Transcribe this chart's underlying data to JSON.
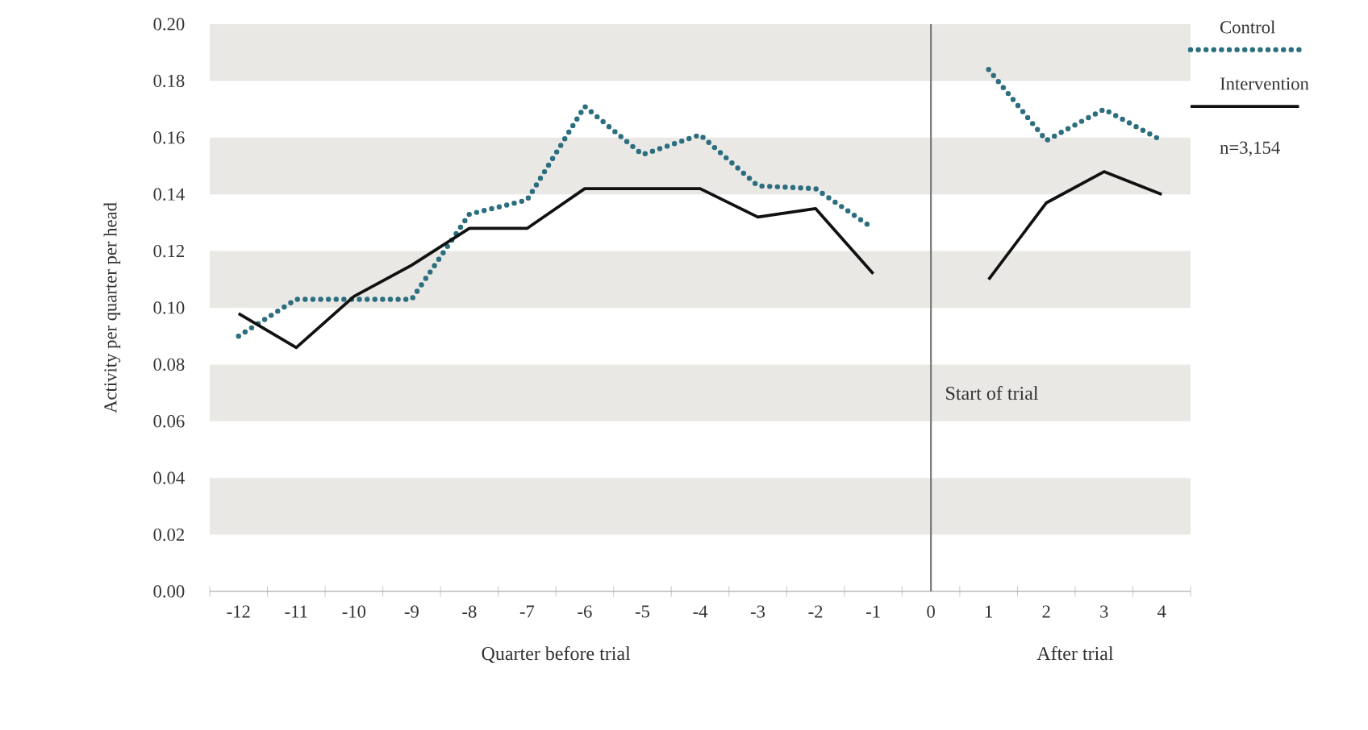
{
  "chart_data": {
    "type": "line",
    "categories": [
      "-12",
      "-11",
      "-10",
      "-9",
      "-8",
      "-7",
      "-6",
      "-5",
      "-4",
      "-3",
      "-2",
      "-1",
      "0",
      "1",
      "2",
      "3",
      "4"
    ],
    "series": [
      {
        "name": "Control",
        "color": "#2b6e7e",
        "line_style": "dotted",
        "values": [
          0.09,
          0.103,
          0.103,
          0.103,
          0.133,
          0.138,
          0.171,
          0.154,
          0.161,
          0.143,
          0.142,
          0.128,
          null,
          0.184,
          0.159,
          0.17,
          0.159
        ]
      },
      {
        "name": "Intervention",
        "color": "#111111",
        "line_style": "solid",
        "values": [
          0.098,
          0.086,
          0.104,
          0.115,
          0.128,
          0.128,
          0.142,
          0.142,
          0.142,
          0.132,
          0.135,
          0.112,
          null,
          0.11,
          0.137,
          0.148,
          0.14
        ]
      }
    ],
    "ylim": [
      0,
      0.2
    ],
    "yticks": [
      {
        "value": 0,
        "label": "0.00"
      },
      {
        "value": 0.02,
        "label": "0.02"
      },
      {
        "value": 0.04,
        "label": "0.04"
      },
      {
        "value": 0.06,
        "label": "0.06"
      },
      {
        "value": 0.08,
        "label": "0.08"
      },
      {
        "value": 0.1,
        "label": "0.10"
      },
      {
        "value": 0.12,
        "label": "0.12"
      },
      {
        "value": 0.14,
        "label": "0.14"
      },
      {
        "value": 0.16,
        "label": "0.16"
      },
      {
        "value": 0.18,
        "label": "0.18"
      },
      {
        "value": 0.2,
        "label": "0.20"
      }
    ],
    "ylabel": "Activity per quarter per head",
    "xlabel": "Quarter before trial",
    "annotations": [
      "After trial",
      "n=3,154"
    ],
    "ref_lines": [
      {
        "axis": "x",
        "value": "0",
        "label": "Start of trial",
        "color": "#777777"
      }
    ],
    "bands": [
      {
        "axis": "y",
        "from": 0.02,
        "to": 0.04,
        "color": "#eae8e5"
      },
      {
        "axis": "y",
        "from": 0.06,
        "to": 0.08,
        "color": "#eae8e5"
      },
      {
        "axis": "y",
        "from": 0.1,
        "to": 0.12,
        "color": "#eae8e5"
      },
      {
        "axis": "y",
        "from": 0.14,
        "to": 0.16,
        "color": "#eae8e5"
      },
      {
        "axis": "y",
        "from": 0.18,
        "to": 0.2,
        "color": "#eae8e5"
      }
    ],
    "legend": "right",
    "marker": "none"
  }
}
